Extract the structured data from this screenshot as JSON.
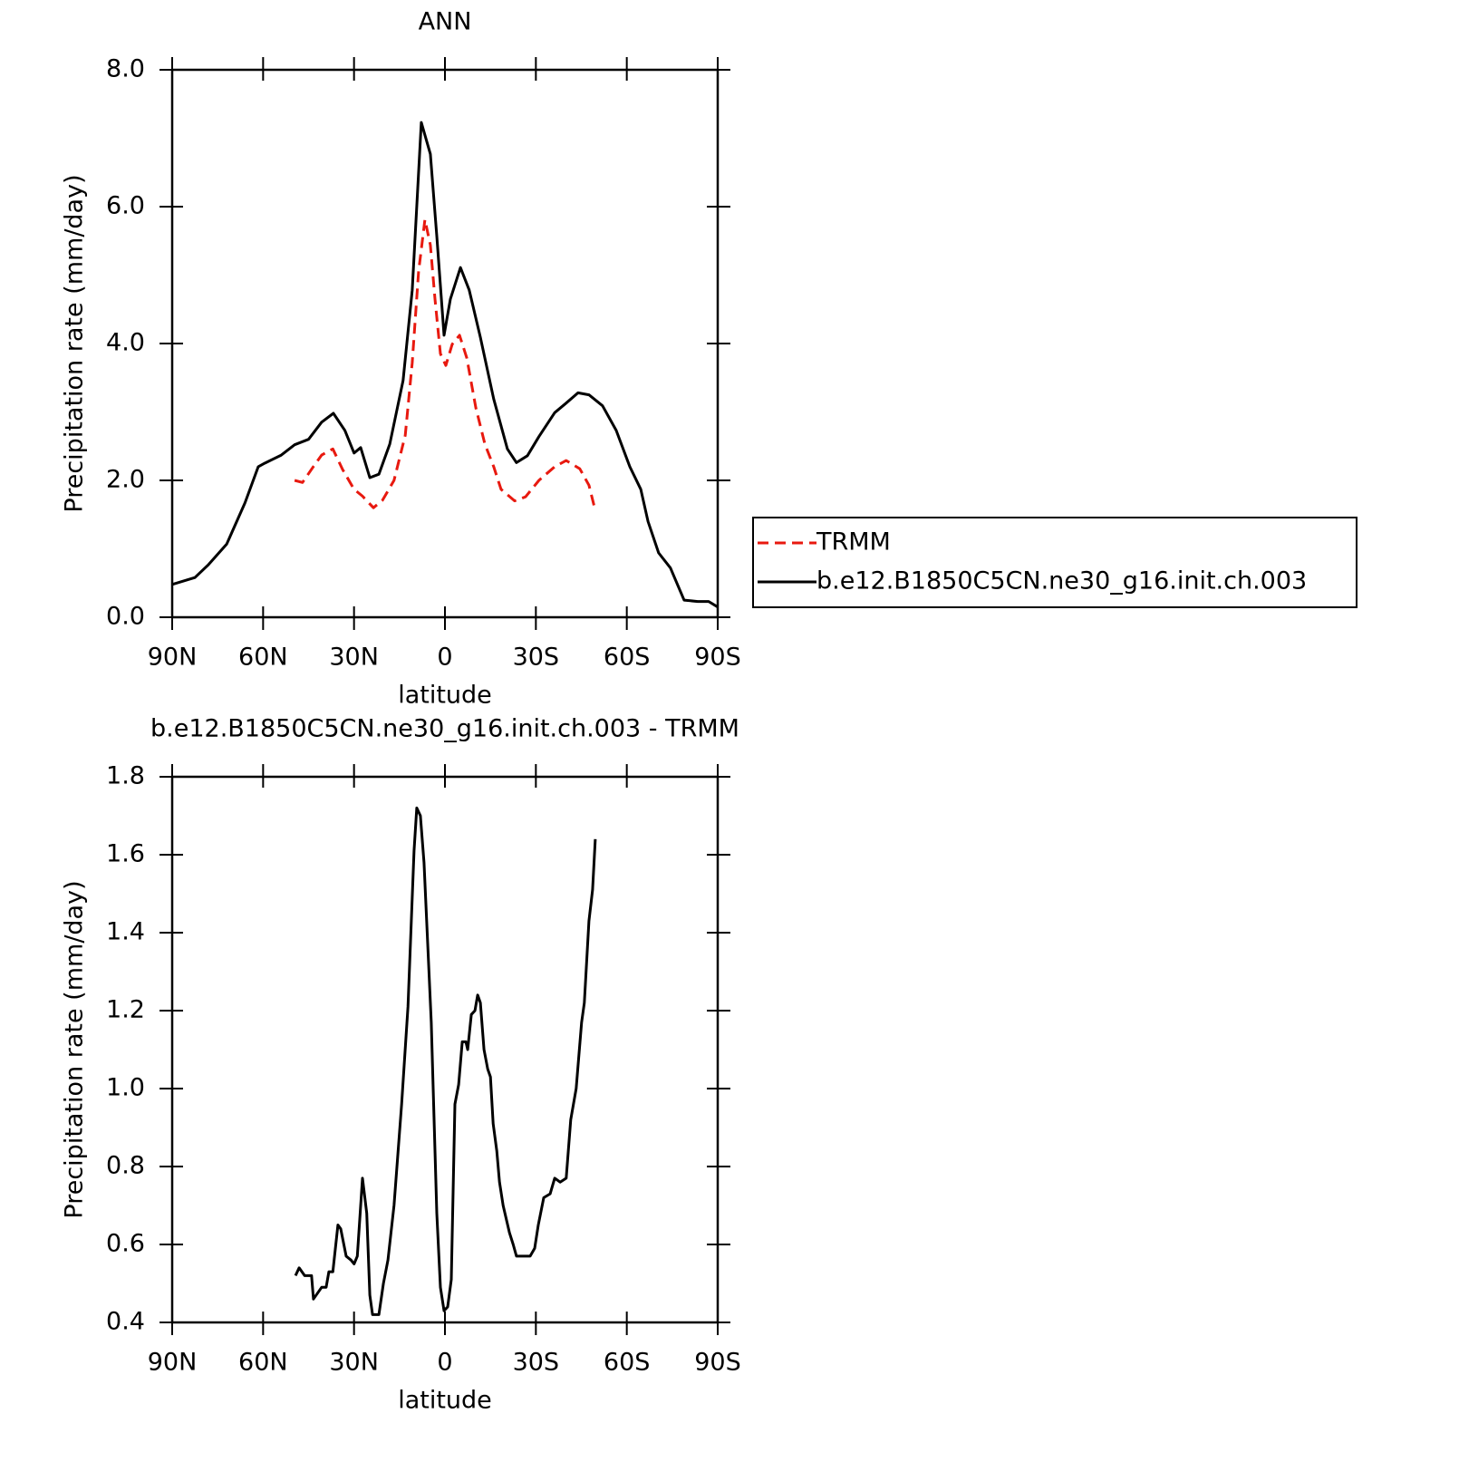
{
  "chart_data": [
    {
      "type": "line",
      "title": "ANN",
      "xlabel": "latitude",
      "ylabel": "Precipitation rate (mm/day)",
      "xlim": [
        90,
        -90
      ],
      "xticks": [
        {
          "value": 90,
          "label": "90N"
        },
        {
          "value": 60,
          "label": "60N"
        },
        {
          "value": 30,
          "label": "30N"
        },
        0,
        {
          "value": -30,
          "label": "30S"
        },
        {
          "value": -60,
          "label": "60S"
        },
        {
          "value": -90,
          "label": "90S"
        }
      ],
      "ylim": [
        0,
        8
      ],
      "yticks": [
        {
          "value": 0,
          "label": "0.0"
        },
        {
          "value": 2,
          "label": "2.0"
        },
        {
          "value": 4,
          "label": "4.0"
        },
        {
          "value": 6,
          "label": "6.0"
        },
        {
          "value": 8,
          "label": "8.0"
        }
      ],
      "legend": "right",
      "series": [
        {
          "name": "TRMM",
          "color": "#e8190f",
          "dashed": true,
          "x": [
            49.6,
            47,
            43.6,
            40.7,
            37,
            33.8,
            30,
            27.2,
            23.6,
            20.6,
            16.8,
            13.1,
            10.8,
            8.7,
            6.6,
            4.8,
            3.3,
            1.5,
            -0.3,
            -2.4,
            -4.8,
            -7.2,
            -10.2,
            -13.2,
            -16.1,
            -18.5,
            -23,
            -26.6,
            -31,
            -36.2,
            -40,
            -44.5,
            -47.5,
            -49.6
          ],
          "values": [
            2.0,
            1.97,
            2.19,
            2.37,
            2.46,
            2.16,
            1.87,
            1.77,
            1.6,
            1.71,
            2.0,
            2.66,
            3.72,
            5.05,
            5.81,
            5.44,
            4.65,
            3.85,
            3.68,
            3.99,
            4.12,
            3.79,
            3.06,
            2.53,
            2.2,
            1.87,
            1.7,
            1.76,
            2.0,
            2.2,
            2.29,
            2.17,
            1.93,
            1.56
          ]
        },
        {
          "name": "b.e12.B1850C5CN.ne30_g16.init.ch.003",
          "color": "#000000",
          "dashed": false,
          "x": [
            90,
            82.5,
            78,
            72,
            66,
            61.6,
            59.5,
            54,
            49.6,
            45,
            40.7,
            36.8,
            33,
            30,
            27.8,
            24.8,
            21.8,
            18.2,
            13.8,
            10.8,
            7.8,
            4.8,
            2.7,
            0.3,
            -1.8,
            -5.1,
            -8,
            -11.7,
            -16.1,
            -20.6,
            -23.6,
            -27.2,
            -31,
            -36.2,
            -40,
            -43.9,
            -47.5,
            -52,
            -56.5,
            -61,
            -64.6,
            -67,
            -70.5,
            -74.4,
            -78.9,
            -83.4,
            -87,
            -90
          ],
          "values": [
            0.48,
            0.58,
            0.77,
            1.07,
            1.67,
            2.2,
            2.25,
            2.37,
            2.52,
            2.6,
            2.85,
            2.98,
            2.73,
            2.4,
            2.48,
            2.04,
            2.09,
            2.53,
            3.46,
            4.78,
            7.23,
            6.77,
            5.57,
            4.12,
            4.65,
            5.11,
            4.78,
            4.09,
            3.19,
            2.46,
            2.26,
            2.36,
            2.64,
            2.99,
            3.13,
            3.28,
            3.25,
            3.09,
            2.73,
            2.2,
            1.87,
            1.4,
            0.94,
            0.72,
            0.25,
            0.23,
            0.23,
            0.15
          ]
        }
      ]
    },
    {
      "type": "line",
      "title": "b.e12.B1850C5CN.ne30_g16.init.ch.003 - TRMM",
      "xlabel": "latitude",
      "ylabel": "Precipitation rate (mm/day)",
      "xlim": [
        90,
        -90
      ],
      "xticks": [
        {
          "value": 90,
          "label": "90N"
        },
        {
          "value": 60,
          "label": "60N"
        },
        {
          "value": 30,
          "label": "30N"
        },
        0,
        {
          "value": -30,
          "label": "30S"
        },
        {
          "value": -60,
          "label": "60S"
        },
        {
          "value": -90,
          "label": "90S"
        }
      ],
      "ylim": [
        0.4,
        1.8
      ],
      "yticks": [
        0.4,
        0.6,
        0.8,
        {
          "value": 1,
          "label": "1.0"
        },
        1.2,
        1.4,
        1.6,
        1.8
      ],
      "series": [
        {
          "color": "#000000",
          "dashed": false,
          "x": [
            49.3,
            48.1,
            46.3,
            44,
            43.4,
            40.7,
            39.2,
            38.3,
            37,
            35.3,
            34.4,
            32.6,
            31,
            30,
            28.9,
            27.2,
            25.8,
            24.8,
            23.9,
            21.8,
            20.3,
            18.8,
            16.8,
            14.3,
            12.2,
            10.2,
            9.3,
            8.1,
            6.9,
            4.5,
            2.7,
            1.5,
            0.3,
            -0.9,
            -2.1,
            -3.3,
            -4.5,
            -5.7,
            -6.9,
            -7.5,
            -8.7,
            -9.9,
            -10.8,
            -11.7,
            -12.9,
            -14.1,
            -15,
            -15.9,
            -17.1,
            -18,
            -19.2,
            -21.3,
            -22.5,
            -23.6,
            -25.1,
            -26.9,
            -28.1,
            -29.6,
            -30.8,
            -32.6,
            -34.7,
            -36.2,
            -38,
            -40,
            -41.5,
            -43.3,
            -45.1,
            -46,
            -47.5,
            -48.7,
            -49.6
          ],
          "values": [
            0.52,
            0.54,
            0.52,
            0.52,
            0.46,
            0.49,
            0.49,
            0.53,
            0.53,
            0.65,
            0.64,
            0.57,
            0.56,
            0.55,
            0.57,
            0.77,
            0.68,
            0.47,
            0.42,
            0.42,
            0.5,
            0.56,
            0.7,
            0.96,
            1.21,
            1.61,
            1.72,
            1.7,
            1.58,
            1.17,
            0.68,
            0.49,
            0.43,
            0.44,
            0.51,
            0.96,
            1.01,
            1.12,
            1.12,
            1.1,
            1.19,
            1.2,
            1.24,
            1.22,
            1.1,
            1.05,
            1.03,
            0.91,
            0.84,
            0.76,
            0.7,
            0.63,
            0.6,
            0.57,
            0.57,
            0.57,
            0.57,
            0.59,
            0.65,
            0.72,
            0.73,
            0.77,
            0.76,
            0.77,
            0.92,
            1.0,
            1.17,
            1.22,
            1.43,
            1.51,
            1.64
          ]
        }
      ]
    }
  ]
}
